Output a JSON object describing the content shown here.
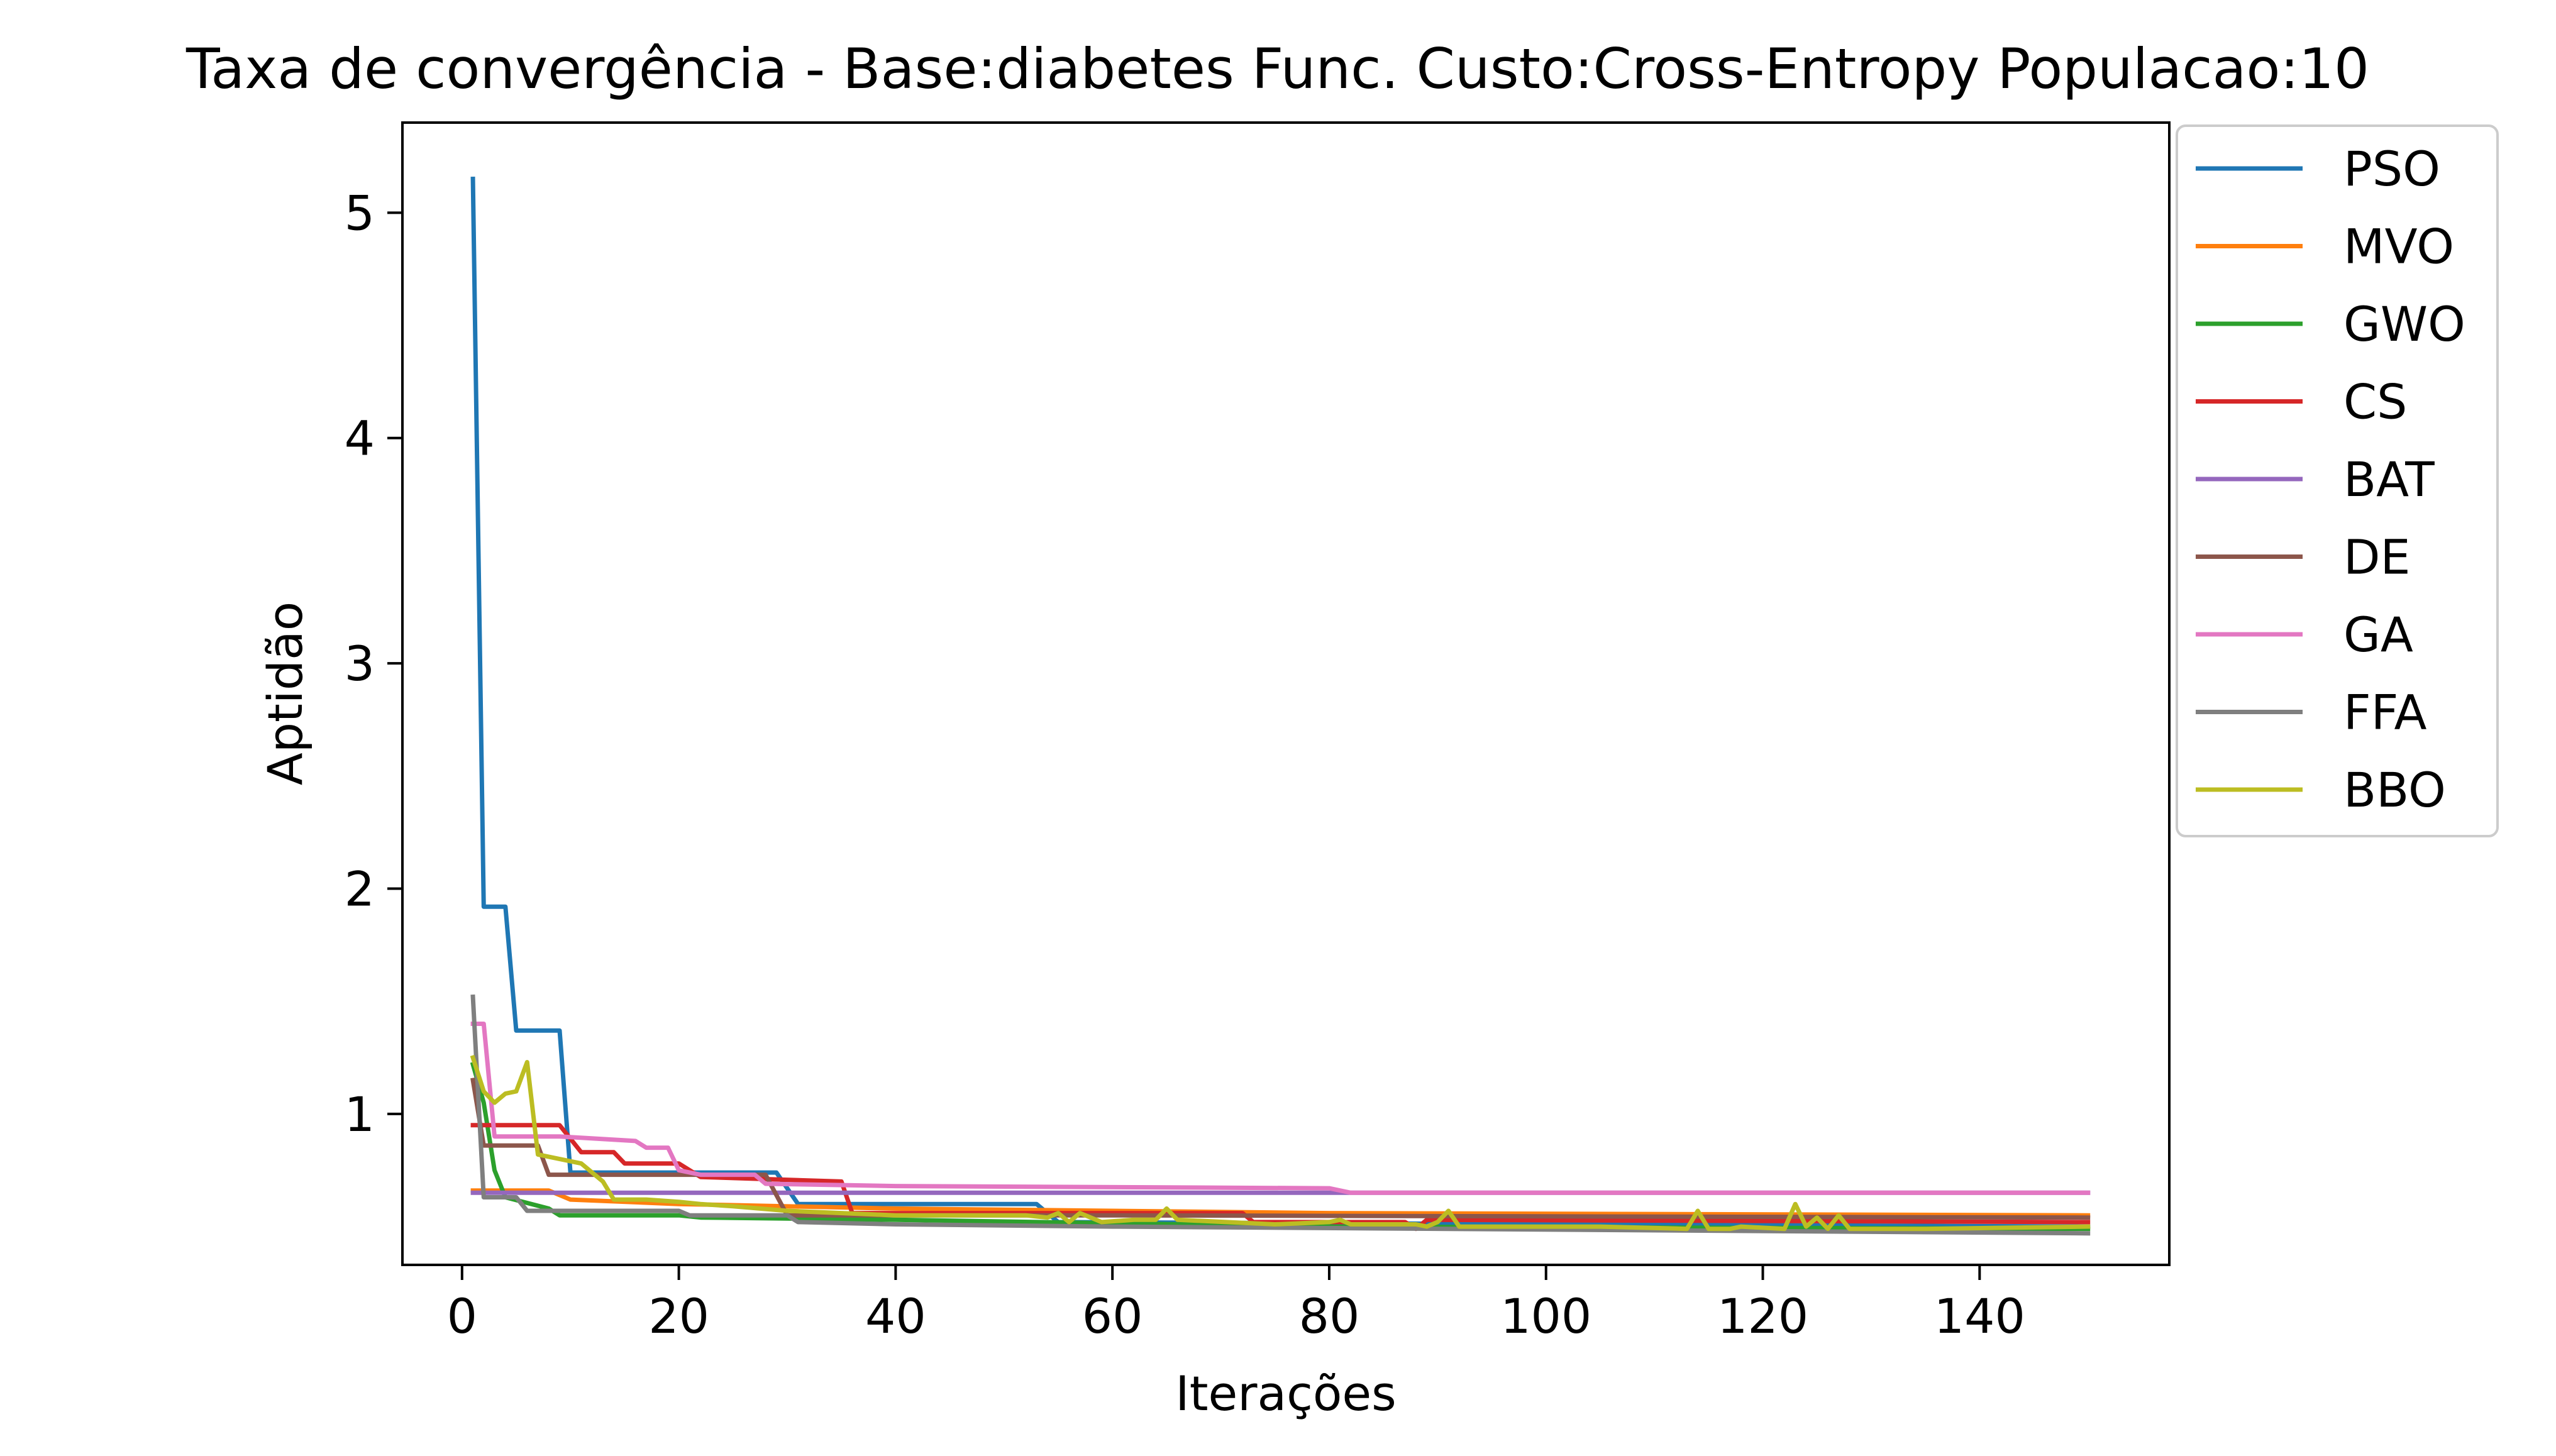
{
  "chart_data": {
    "type": "line",
    "title": "Taxa de convergência - Base:diabetes Func. Custo:Cross-Entropy Populacao:10",
    "xlabel": "Iterações",
    "ylabel": "Aptidão",
    "xlim": [
      -5.5,
      157.5
    ],
    "ylim": [
      0.33,
      5.4
    ],
    "xticks": [
      0,
      20,
      40,
      60,
      80,
      100,
      120,
      140
    ],
    "yticks": [
      1,
      2,
      3,
      4,
      5
    ],
    "grid": false,
    "legend_position": "outside-top-right",
    "series": [
      {
        "name": "PSO",
        "color": "#1f77b4",
        "points": [
          [
            1,
            5.15
          ],
          [
            2,
            1.92
          ],
          [
            4,
            1.92
          ],
          [
            5,
            1.37
          ],
          [
            9,
            1.37
          ],
          [
            10,
            0.74
          ],
          [
            29,
            0.74
          ],
          [
            31,
            0.6
          ],
          [
            53,
            0.6
          ],
          [
            55,
            0.52
          ],
          [
            150,
            0.5
          ]
        ]
      },
      {
        "name": "MVO",
        "color": "#ff7f0e",
        "points": [
          [
            1,
            0.66
          ],
          [
            8,
            0.66
          ],
          [
            10,
            0.62
          ],
          [
            20,
            0.6
          ],
          [
            40,
            0.58
          ],
          [
            80,
            0.56
          ],
          [
            150,
            0.55
          ]
        ]
      },
      {
        "name": "GWO",
        "color": "#2ca02c",
        "points": [
          [
            1,
            1.22
          ],
          [
            2,
            1.05
          ],
          [
            3,
            0.75
          ],
          [
            4,
            0.63
          ],
          [
            8,
            0.58
          ],
          [
            9,
            0.55
          ],
          [
            20,
            0.55
          ],
          [
            22,
            0.54
          ],
          [
            40,
            0.53
          ],
          [
            80,
            0.5
          ],
          [
            150,
            0.49
          ]
        ]
      },
      {
        "name": "CS",
        "color": "#d62728",
        "points": [
          [
            1,
            0.95
          ],
          [
            9,
            0.95
          ],
          [
            11,
            0.83
          ],
          [
            14,
            0.83
          ],
          [
            15,
            0.78
          ],
          [
            20,
            0.78
          ],
          [
            22,
            0.72
          ],
          [
            35,
            0.7
          ],
          [
            36,
            0.56
          ],
          [
            72,
            0.56
          ],
          [
            73,
            0.52
          ],
          [
            87,
            0.52
          ],
          [
            88,
            0.49
          ],
          [
            89,
            0.53
          ],
          [
            150,
            0.52
          ]
        ]
      },
      {
        "name": "BAT",
        "color": "#9467bd",
        "points": [
          [
            1,
            0.65
          ],
          [
            150,
            0.65
          ]
        ]
      },
      {
        "name": "DE",
        "color": "#8c564b",
        "points": [
          [
            1,
            1.15
          ],
          [
            2,
            0.86
          ],
          [
            7,
            0.86
          ],
          [
            8,
            0.73
          ],
          [
            28,
            0.73
          ],
          [
            30,
            0.55
          ],
          [
            60,
            0.55
          ],
          [
            150,
            0.54
          ]
        ]
      },
      {
        "name": "GA",
        "color": "#e377c2",
        "points": [
          [
            1,
            1.4
          ],
          [
            2,
            1.4
          ],
          [
            3,
            0.9
          ],
          [
            9,
            0.9
          ],
          [
            16,
            0.88
          ],
          [
            17,
            0.85
          ],
          [
            19,
            0.85
          ],
          [
            20,
            0.75
          ],
          [
            22,
            0.73
          ],
          [
            27,
            0.73
          ],
          [
            28,
            0.69
          ],
          [
            40,
            0.68
          ],
          [
            80,
            0.67
          ],
          [
            82,
            0.65
          ],
          [
            150,
            0.65
          ]
        ]
      },
      {
        "name": "FFA",
        "color": "#7f7f7f",
        "points": [
          [
            1,
            1.52
          ],
          [
            2,
            0.63
          ],
          [
            5,
            0.63
          ],
          [
            6,
            0.57
          ],
          [
            20,
            0.57
          ],
          [
            21,
            0.55
          ],
          [
            30,
            0.55
          ],
          [
            31,
            0.52
          ],
          [
            40,
            0.51
          ],
          [
            60,
            0.5
          ],
          [
            150,
            0.47
          ]
        ]
      },
      {
        "name": "BBO",
        "color": "#bcbd22",
        "points": [
          [
            1,
            1.25
          ],
          [
            2,
            1.1
          ],
          [
            3,
            1.05
          ],
          [
            4,
            1.09
          ],
          [
            5,
            1.1
          ],
          [
            6,
            1.23
          ],
          [
            7,
            0.82
          ],
          [
            9,
            0.8
          ],
          [
            11,
            0.78
          ],
          [
            13,
            0.7
          ],
          [
            14,
            0.62
          ],
          [
            17,
            0.62
          ],
          [
            20,
            0.61
          ],
          [
            22,
            0.6
          ],
          [
            25,
            0.59
          ],
          [
            30,
            0.57
          ],
          [
            35,
            0.56
          ],
          [
            40,
            0.55
          ],
          [
            52,
            0.55
          ],
          [
            54,
            0.54
          ],
          [
            55,
            0.56
          ],
          [
            56,
            0.52
          ],
          [
            57,
            0.56
          ],
          [
            59,
            0.52
          ],
          [
            62,
            0.53
          ],
          [
            64,
            0.53
          ],
          [
            65,
            0.58
          ],
          [
            66,
            0.53
          ],
          [
            75,
            0.51
          ],
          [
            80,
            0.52
          ],
          [
            81,
            0.53
          ],
          [
            82,
            0.51
          ],
          [
            88,
            0.51
          ],
          [
            89,
            0.5
          ],
          [
            90,
            0.52
          ],
          [
            91,
            0.57
          ],
          [
            92,
            0.5
          ],
          [
            100,
            0.5
          ],
          [
            105,
            0.5
          ],
          [
            113,
            0.49
          ],
          [
            114,
            0.57
          ],
          [
            115,
            0.49
          ],
          [
            117,
            0.49
          ],
          [
            118,
            0.5
          ],
          [
            122,
            0.49
          ],
          [
            123,
            0.6
          ],
          [
            124,
            0.5
          ],
          [
            125,
            0.54
          ],
          [
            126,
            0.49
          ],
          [
            127,
            0.55
          ],
          [
            128,
            0.49
          ],
          [
            135,
            0.49
          ],
          [
            150,
            0.5
          ]
        ]
      }
    ]
  }
}
